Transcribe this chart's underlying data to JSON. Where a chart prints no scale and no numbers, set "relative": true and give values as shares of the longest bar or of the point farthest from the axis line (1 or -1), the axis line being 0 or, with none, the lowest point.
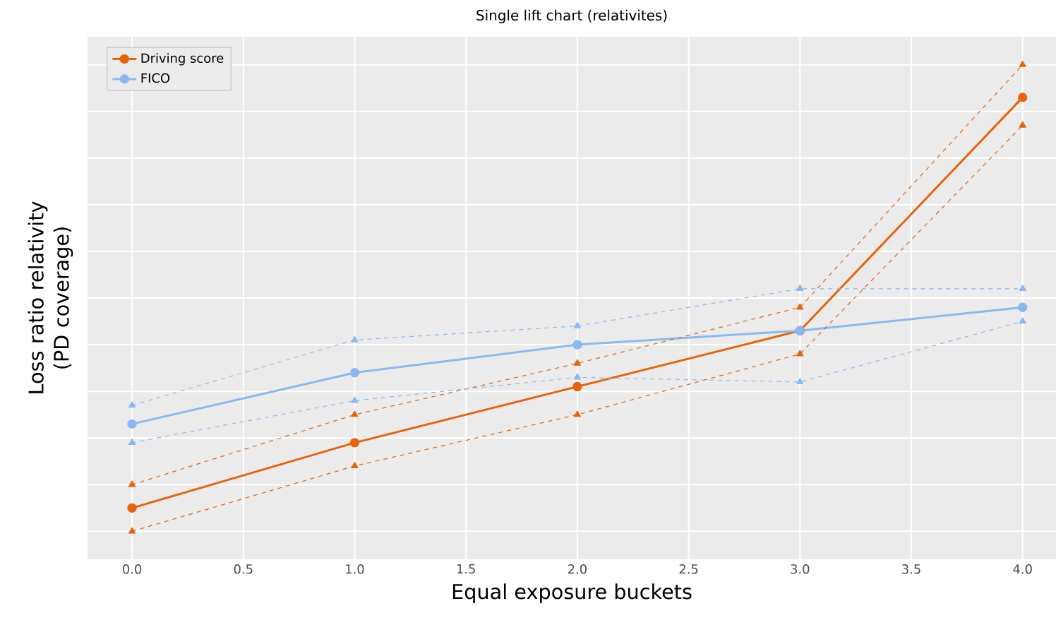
{
  "chart_data": {
    "type": "line",
    "title": "Single lift chart (relativites)",
    "xlabel": "Equal exposure buckets",
    "ylabel": "Loss ratio relativity (PD coverage)",
    "relative": true,
    "x": [
      0,
      1,
      2,
      3,
      4
    ],
    "xlim": [
      -0.2,
      4.15
    ],
    "xticks": [
      {
        "value": 0,
        "label": "0.0"
      },
      {
        "value": 0.5,
        "label": "0.5"
      },
      {
        "value": 1,
        "label": "1.0"
      },
      {
        "value": 1.5,
        "label": "1.5"
      },
      {
        "value": 2,
        "label": "2.0"
      },
      {
        "value": 2.5,
        "label": "2.5"
      },
      {
        "value": 3,
        "label": "3.0"
      },
      {
        "value": 3.5,
        "label": "3.5"
      },
      {
        "value": 4,
        "label": "4.0"
      }
    ],
    "series": [
      {
        "name": "Driving score",
        "color": "#e8630a",
        "values": [
          0.05,
          0.19,
          0.31,
          0.43,
          0.93
        ]
      },
      {
        "name": "FICO",
        "color": "#8ab8f0",
        "values": [
          0.23,
          0.34,
          0.4,
          0.43,
          0.48
        ]
      },
      {
        "color": "#e8630a",
        "values": [
          0,
          0.14,
          0.25,
          0.38,
          0.87
        ],
        "marker": "triangle",
        "line_style": "dashed"
      },
      {
        "color": "#e8630a",
        "values": [
          0.1,
          0.25,
          0.36,
          0.48,
          1
        ],
        "marker": "triangle",
        "line_style": "dashed"
      },
      {
        "color": "#8ab8f0",
        "values": [
          0.19,
          0.28,
          0.33,
          0.32,
          0.45
        ],
        "marker": "triangle",
        "line_style": "dashed"
      },
      {
        "color": "#8ab8f0",
        "values": [
          0.27,
          0.41,
          0.44,
          0.52,
          0.52
        ],
        "marker": "triangle",
        "line_style": "dashed"
      }
    ],
    "grid": true,
    "legend": "top left",
    "marker": "circle",
    "line_style": "solid"
  }
}
